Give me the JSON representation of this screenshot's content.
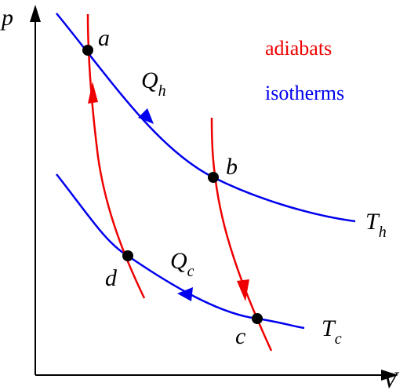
{
  "axes": {
    "y_label": "p",
    "x_label": "V"
  },
  "points": {
    "a": "a",
    "b": "b",
    "c": "c",
    "d": "d"
  },
  "heat_hot": {
    "symbol": "Q",
    "subscript": "h"
  },
  "heat_cold": {
    "symbol": "Q",
    "subscript": "c"
  },
  "temp_hot": {
    "symbol": "T",
    "subscript": "h"
  },
  "temp_cold": {
    "symbol": "T",
    "subscript": "c"
  },
  "legend": {
    "adiabats": "adiabats",
    "isotherms": "isotherms"
  }
}
